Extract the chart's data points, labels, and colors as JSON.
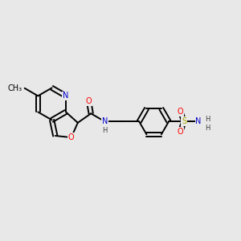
{
  "background_color": "#e8e8e8",
  "bond_color": "#000000",
  "atom_colors": {
    "N": "#0000cc",
    "O": "#ff0000",
    "S": "#aaaa00",
    "H": "#404040",
    "C": "#000000"
  }
}
